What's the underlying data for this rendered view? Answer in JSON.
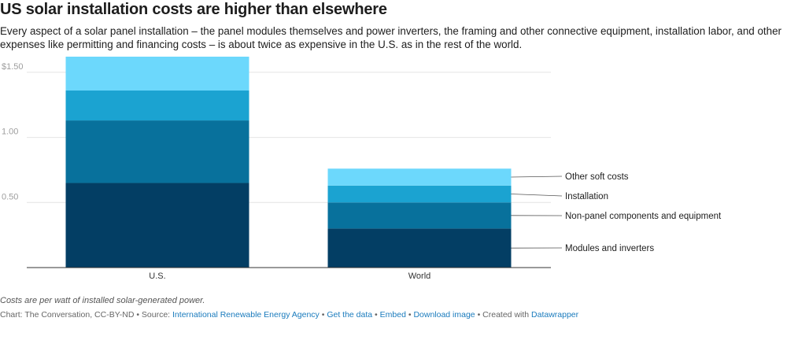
{
  "title": "US solar installation costs are higher than elsewhere",
  "description": "Every aspect of a solar panel installation – the panel modules themselves and power inverters, the framing and other connective equipment, installation labor, and other expenses like permitting and financing costs – is about twice as expensive in the U.S. as in the rest of the world.",
  "chart_data": {
    "type": "bar",
    "stacked": true,
    "categories": [
      "U.S.",
      "World"
    ],
    "series": [
      {
        "name": "Modules and inverters",
        "values": [
          0.65,
          0.3
        ],
        "color": "#033e64"
      },
      {
        "name": "Non-panel components and equipment",
        "values": [
          0.48,
          0.2
        ],
        "color": "#08719c"
      },
      {
        "name": "Installation",
        "values": [
          0.23,
          0.13
        ],
        "color": "#1ba3d1"
      },
      {
        "name": "Other soft costs",
        "values": [
          0.26,
          0.13
        ],
        "color": "#6cd8fc"
      }
    ],
    "ylim": [
      0,
      1.62
    ],
    "yticks": [
      {
        "value": 0.5,
        "label": "0.50"
      },
      {
        "value": 1.0,
        "label": "1.00"
      },
      {
        "value": 1.5,
        "label": "$1.50"
      }
    ],
    "xlabel": "",
    "ylabel": "",
    "grid": true,
    "legend_placement": "right (labels beside World bar)"
  },
  "notes": "Costs are per watt of installed solar-generated power.",
  "footer": {
    "prefix": "Chart: The Conversation, CC-BY-ND • Source: ",
    "source_link": "International Renewable Energy Agency",
    "sep1": " • ",
    "get_data": "Get the data",
    "sep2": " • ",
    "embed": "Embed",
    "sep3": " • ",
    "download": "Download image",
    "sep4": " • Created with ",
    "datawrapper": "Datawrapper"
  }
}
